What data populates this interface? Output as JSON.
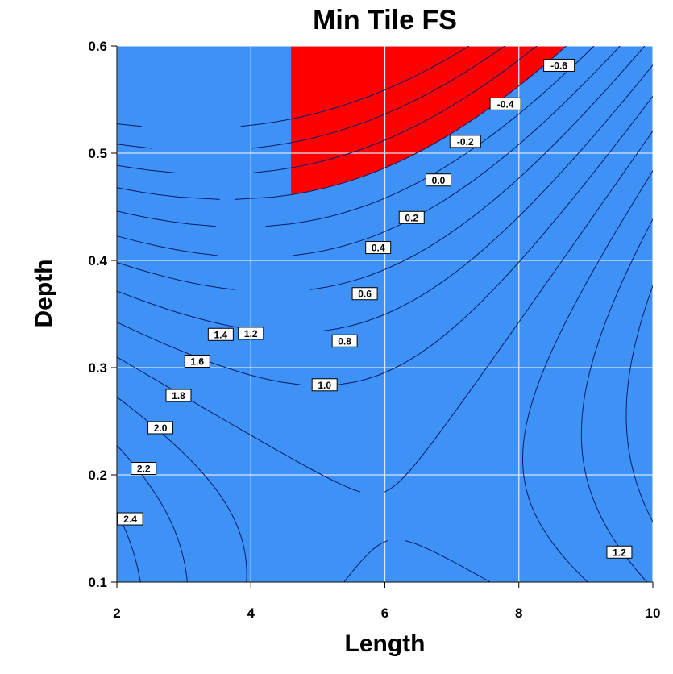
{
  "chart_data": {
    "type": "contour",
    "title": "Min Tile FS",
    "xlabel": "Length",
    "ylabel": "Depth",
    "xlim": [
      2,
      10
    ],
    "ylim": [
      0.1,
      0.6
    ],
    "x_ticks": [
      "2",
      "4",
      "6",
      "8",
      "10"
    ],
    "y_ticks": [
      "0.1",
      "0.2",
      "0.3",
      "0.4",
      "0.5",
      "0.6"
    ],
    "grid": true,
    "colors": {
      "below_zero": "#ff0000",
      "above_zero": "#3f92f5",
      "contour_line": "#0a1a66",
      "grid": "#d8e6f8"
    },
    "contour_labels": [
      {
        "text": "-0.6",
        "x": 8.6,
        "y": 0.582
      },
      {
        "text": "-0.4",
        "x": 7.8,
        "y": 0.546
      },
      {
        "text": "-0.2",
        "x": 7.2,
        "y": 0.511
      },
      {
        "text": "0.0",
        "x": 6.8,
        "y": 0.475
      },
      {
        "text": "0.2",
        "x": 6.4,
        "y": 0.44
      },
      {
        "text": "0.4",
        "x": 5.9,
        "y": 0.412
      },
      {
        "text": "0.6",
        "x": 5.7,
        "y": 0.369
      },
      {
        "text": "0.8",
        "x": 5.4,
        "y": 0.325
      },
      {
        "text": "1.0",
        "x": 5.1,
        "y": 0.284
      },
      {
        "text": "1.2",
        "x": 4.0,
        "y": 0.332
      },
      {
        "text": "1.4",
        "x": 3.55,
        "y": 0.331
      },
      {
        "text": "1.6",
        "x": 3.2,
        "y": 0.306
      },
      {
        "text": "1.8",
        "x": 2.92,
        "y": 0.274
      },
      {
        "text": "2.0",
        "x": 2.65,
        "y": 0.244
      },
      {
        "text": "2.2",
        "x": 2.4,
        "y": 0.206
      },
      {
        "text": "2.4",
        "x": 2.2,
        "y": 0.159
      },
      {
        "text": "1.2",
        "x": 9.5,
        "y": 0.128
      }
    ]
  }
}
